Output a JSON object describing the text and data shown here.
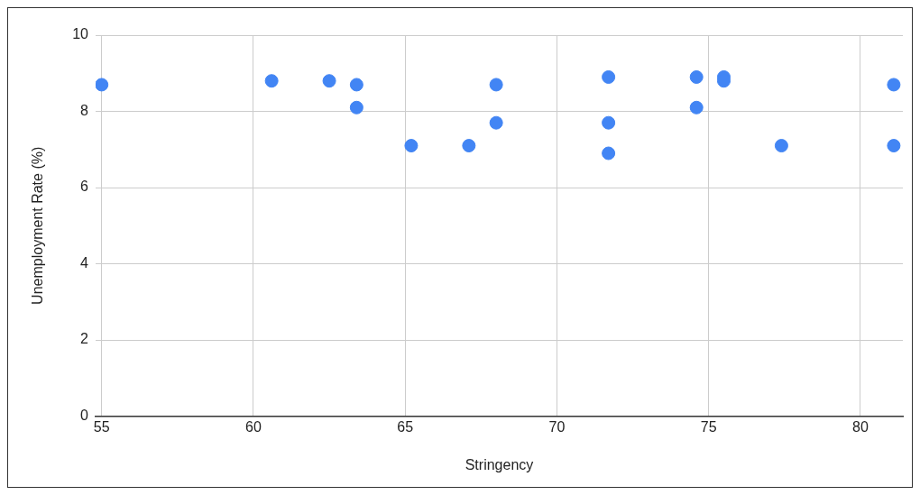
{
  "chart_data": {
    "type": "scatter",
    "xlabel": "Stringency",
    "ylabel": "Unemployment Rate (%)",
    "x": [
      55,
      60.6,
      62.5,
      63.4,
      63.4,
      65.2,
      67.1,
      68,
      68,
      71.7,
      71.7,
      71.7,
      74.6,
      74.6,
      75.5,
      75.5,
      77.4,
      81.1,
      81.1
    ],
    "values": [
      8.7,
      8.8,
      8.8,
      8.7,
      8.1,
      7.1,
      7.1,
      8.7,
      7.7,
      8.9,
      7.7,
      6.9,
      8.9,
      8.1,
      8.9,
      8.8,
      7.1,
      8.7,
      7.1
    ],
    "color": "#4285f4",
    "marker": "circle",
    "xlim": [
      54.8,
      81.4
    ],
    "xticks": [
      55,
      60,
      65,
      70,
      75,
      80
    ],
    "ylim": [
      0,
      10
    ],
    "yticks": [
      0,
      2,
      4,
      6,
      8,
      10
    ],
    "grid": true,
    "legend": false
  }
}
